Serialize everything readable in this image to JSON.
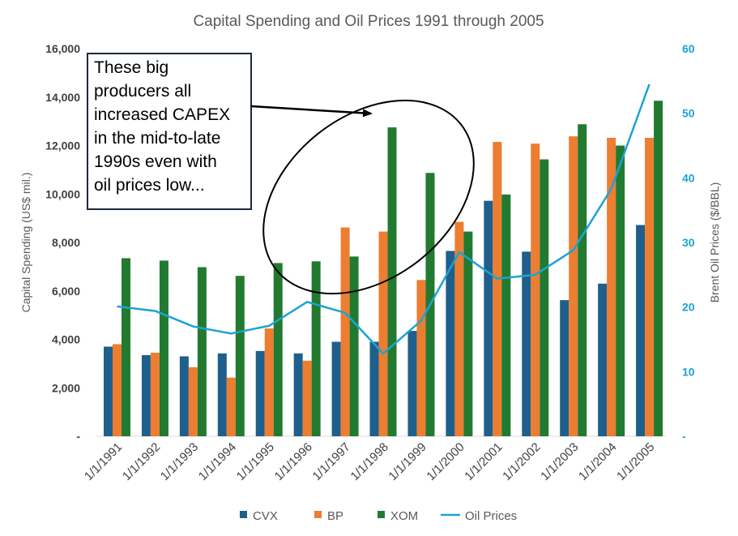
{
  "chart_data": {
    "type": "bar",
    "title": "Capital Spending and Oil Prices 1991 through 2005",
    "categories": [
      "1/1/1991",
      "1/1/1992",
      "1/1/1993",
      "1/1/1994",
      "1/1/1995",
      "1/1/1996",
      "1/1/1997",
      "1/1/1998",
      "1/1/1999",
      "1/1/2000",
      "1/1/2001",
      "1/1/2002",
      "1/1/2003",
      "1/1/2004",
      "1/1/2005"
    ],
    "ylabel": "Capital Spending (US$ mil.)",
    "ylim": [
      0,
      16000
    ],
    "yticks": [
      {
        "value": 0,
        "label": "-"
      },
      {
        "value": 2000,
        "label": "2,000"
      },
      {
        "value": 4000,
        "label": "4,000"
      },
      {
        "value": 6000,
        "label": "6,000"
      },
      {
        "value": 8000,
        "label": "8,000"
      },
      {
        "value": 10000,
        "label": "10,000"
      },
      {
        "value": 12000,
        "label": "12,000"
      },
      {
        "value": 14000,
        "label": "14,000"
      },
      {
        "value": 16000,
        "label": "16,000"
      }
    ],
    "y2label": "Brent Oil Prices ($/BBL)",
    "y2lim": [
      0,
      60
    ],
    "y2ticks": [
      {
        "value": 0,
        "label": "-"
      },
      {
        "value": 10,
        "label": "10"
      },
      {
        "value": 20,
        "label": "20"
      },
      {
        "value": 30,
        "label": "30"
      },
      {
        "value": 40,
        "label": "40"
      },
      {
        "value": 50,
        "label": "50"
      },
      {
        "value": 60,
        "label": "60"
      }
    ],
    "series": [
      {
        "name": "CVX",
        "type": "bar",
        "axis": "left",
        "color": "#1f5f8b",
        "values": [
          3700,
          3350,
          3300,
          3420,
          3520,
          3420,
          3900,
          3900,
          4350,
          7650,
          9720,
          7620,
          5620,
          6300,
          8720
        ]
      },
      {
        "name": "BP",
        "type": "bar",
        "axis": "left",
        "color": "#ed7d31",
        "values": [
          3800,
          3450,
          2850,
          2420,
          4450,
          3120,
          8620,
          8450,
          6450,
          8850,
          12150,
          12080,
          12380,
          12320,
          12320
        ]
      },
      {
        "name": "XOM",
        "type": "bar",
        "axis": "left",
        "color": "#217a30",
        "values": [
          7350,
          7250,
          6980,
          6620,
          7150,
          7220,
          7420,
          12750,
          10870,
          8450,
          9980,
          11430,
          12880,
          12000,
          13850
        ]
      },
      {
        "name": "Oil Prices",
        "type": "line",
        "axis": "right",
        "color": "#1ca3d3",
        "values": [
          20.1,
          19.4,
          17.0,
          15.9,
          17.1,
          20.8,
          19.1,
          12.8,
          17.9,
          28.5,
          24.4,
          25.0,
          28.8,
          38.3,
          54.5
        ]
      }
    ],
    "legend_position": "bottom",
    "grid": false,
    "annotation": {
      "lines": [
        "These big",
        "producers all",
        "increased CAPEX",
        "in the mid-to-late",
        "1990s even with",
        "oil prices low..."
      ]
    }
  }
}
